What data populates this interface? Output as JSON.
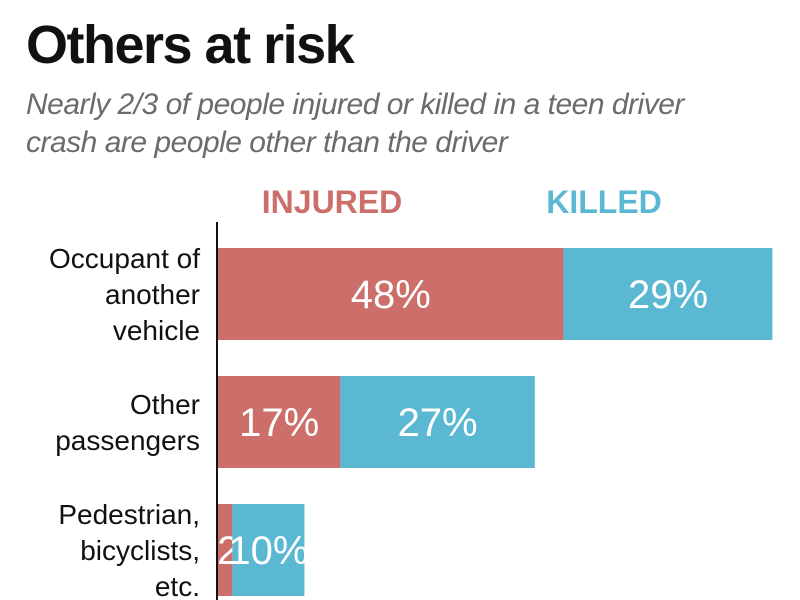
{
  "title": "Others at risk",
  "subtitle": "Nearly 2/3 of people injured or killed in a teen driver crash are people other than the driver",
  "chart_data": {
    "type": "bar",
    "orientation": "horizontal",
    "stacked": true,
    "categories": [
      [
        "Occupant of",
        "another",
        "vehicle"
      ],
      [
        "Other",
        "passengers"
      ],
      [
        "Pedestrian,",
        "bicyclists,",
        "etc."
      ]
    ],
    "series": [
      {
        "name": "INJURED",
        "color": "#cc6f6a",
        "values": [
          48,
          17,
          2
        ],
        "labels": [
          "48%",
          "17%",
          "2%"
        ]
      },
      {
        "name": "KILLED",
        "color": "#5bb8d3",
        "values": [
          29,
          27,
          10
        ],
        "labels": [
          "29%",
          "27%",
          "10%"
        ]
      }
    ],
    "legend": "top"
  }
}
